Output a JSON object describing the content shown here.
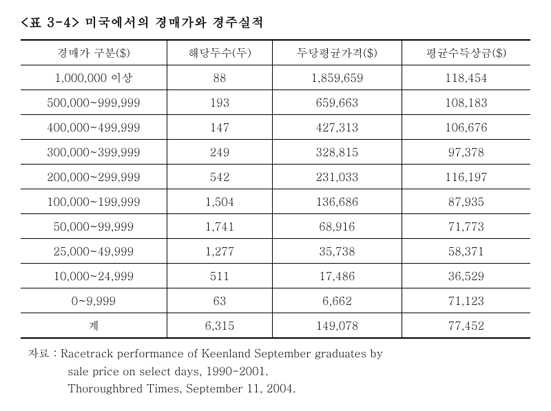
{
  "title": "<표 3-4> 미국에서의 경매가와 경주실적",
  "table": {
    "columns": [
      "경매가 구분($)",
      "해당두수(두)",
      "두당평균가격($)",
      "평균수득상금($)"
    ],
    "rows": [
      [
        "1,000,000 이상",
        "88",
        "1,859,659",
        "118,454"
      ],
      [
        "500,000~999,999",
        "193",
        "659,663",
        "108,183"
      ],
      [
        "400,000~499,999",
        "147",
        "427,313",
        "106,676"
      ],
      [
        "300,000~399,999",
        "249",
        "328,815",
        "97,378"
      ],
      [
        "200,000~299,999",
        "542",
        "231,033",
        "116,197"
      ],
      [
        "100,000~199,999",
        "1,504",
        "136,686",
        "87,935"
      ],
      [
        "50,000~99,999",
        "1,741",
        "68,916",
        "71,773"
      ],
      [
        "25,000~49,999",
        "1,277",
        "35,738",
        "58,371"
      ],
      [
        "10,000~24,999",
        "511",
        "17,486",
        "36,529"
      ],
      [
        "0~9,999",
        "63",
        "6,662",
        "71,123"
      ],
      [
        "계",
        "6,315",
        "149,078",
        "77,452"
      ]
    ]
  },
  "source": {
    "label": "자료 :",
    "line1": "Racetrack performance of Keenland September graduates by",
    "line2": "sale price on select days, 1990-2001.",
    "line3": "Thoroughbred Times, September 11, 2004."
  }
}
